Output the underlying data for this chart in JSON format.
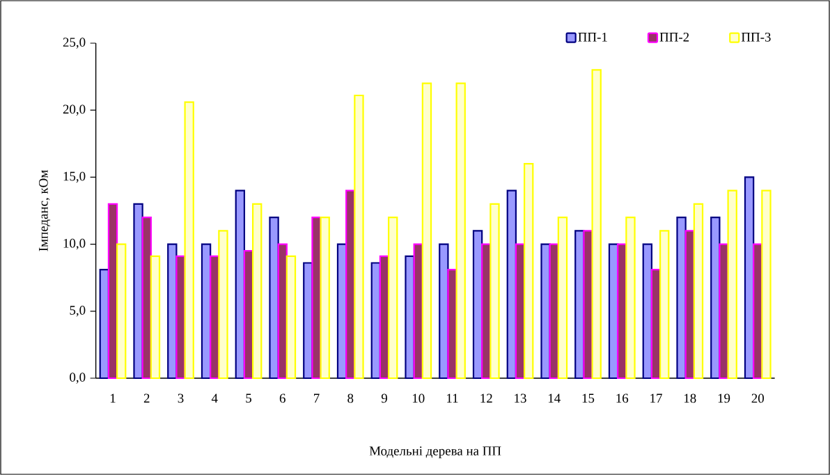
{
  "chart_data": {
    "type": "bar",
    "xlabel": "Модельні дерева на ПП",
    "ylabel": "Імпеданс, кОм",
    "categories": [
      "1",
      "2",
      "3",
      "4",
      "5",
      "6",
      "7",
      "8",
      "9",
      "10",
      "11",
      "12",
      "13",
      "14",
      "15",
      "16",
      "17",
      "18",
      "19",
      "20"
    ],
    "series": [
      {
        "name": "ПП-1",
        "color": "#9999ff",
        "values": [
          8.1,
          13,
          10,
          10,
          14,
          12,
          8.6,
          10,
          8.6,
          9.1,
          10,
          11,
          14,
          10,
          11,
          10,
          10,
          12,
          12,
          15
        ]
      },
      {
        "name": "ПП-2",
        "color": "#993366",
        "values": [
          13,
          12,
          9.1,
          9.1,
          9.5,
          10,
          12,
          14,
          9.1,
          10,
          8.1,
          10,
          10,
          10,
          11,
          10,
          8.1,
          11,
          10,
          10
        ]
      },
      {
        "name": "ПП-3",
        "color": "#ffffcc",
        "values": [
          10,
          9.1,
          20.6,
          11,
          13,
          9.1,
          12,
          21.1,
          12,
          22,
          22,
          13,
          16,
          12,
          23,
          12,
          11,
          13,
          14,
          14
        ]
      }
    ],
    "ylim": [
      0,
      25
    ],
    "yticks": [
      {
        "value": 0,
        "label": "0,0"
      },
      {
        "value": 5,
        "label": "5,0"
      },
      {
        "value": 10,
        "label": "10,0"
      },
      {
        "value": 15,
        "label": "15,0"
      },
      {
        "value": 20,
        "label": "20,0"
      },
      {
        "value": 25,
        "label": "25,0"
      }
    ],
    "grid": false,
    "legend": "top right"
  }
}
